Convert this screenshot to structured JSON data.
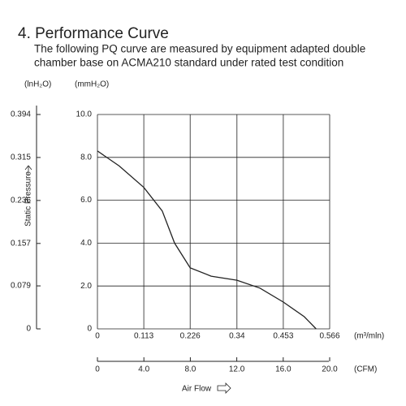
{
  "chart_data": {
    "type": "line",
    "title": "4. Performance Curve",
    "subtitle": [
      "The following PQ curve are measured by equipment adapted double",
      "chamber base on ACMA210 standard under rated test condition"
    ],
    "y_label": "Static Pressure",
    "x_label": "Air Flow",
    "y_unit": "(mmH₂O)",
    "y2_unit": "(lnH₂O)",
    "x_unit": "(m³/mln)",
    "x2_unit": "(CFM)",
    "xlim": [
      0,
      0.566
    ],
    "xticks": [
      0,
      0.113,
      0.226,
      0.34,
      0.453,
      0.566
    ],
    "x2lim": [
      0,
      20
    ],
    "x2ticks": [
      0,
      {
        "value": 4,
        "label": "4.0"
      },
      {
        "value": 8,
        "label": "8.0"
      },
      {
        "value": 12,
        "label": "12.0"
      },
      {
        "value": 16,
        "label": "16.0"
      },
      {
        "value": 20,
        "label": "20.0"
      }
    ],
    "ylim": [
      0,
      10
    ],
    "yticks": [
      0,
      {
        "value": 2,
        "label": "2.0"
      },
      {
        "value": 4,
        "label": "4.0"
      },
      {
        "value": 6,
        "label": "6.0"
      },
      {
        "value": 8,
        "label": "8.0"
      },
      {
        "value": 10,
        "label": "10.0"
      }
    ],
    "y2lim": [
      0,
      0.394
    ],
    "y2ticks": [
      0,
      0.079,
      0.157,
      0.236,
      0.315,
      0.394
    ],
    "grid": true,
    "series": [
      {
        "color": "#222222",
        "x": [
          0,
          0.053,
          0.113,
          0.158,
          0.188,
          0.226,
          0.277,
          0.34,
          0.396,
          0.453,
          0.504,
          0.533
        ],
        "values": [
          8.3,
          7.6,
          6.6,
          5.5,
          4.0,
          2.85,
          2.46,
          2.27,
          1.9,
          1.25,
          0.57,
          0
        ]
      }
    ]
  }
}
